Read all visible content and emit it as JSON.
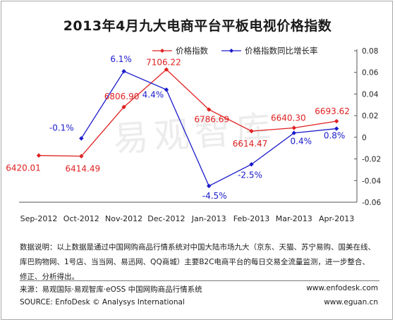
{
  "title": "2013年4月九大电商平台平板电视价格指数",
  "watermark": "易观智库",
  "chart_data": {
    "type": "line",
    "categories": [
      "Sep-2012",
      "Oct-2012",
      "Nov-2012",
      "Dec-2012",
      "Jan-2013",
      "Feb-2013",
      "Mar-2013",
      "Apr-2013"
    ],
    "series": [
      {
        "name": "价格指数",
        "axis": "left",
        "color": "#e02020",
        "values": [
          6420.01,
          6414.49,
          6806.9,
          7106.22,
          6786.69,
          6614.47,
          6640.3,
          6693.62
        ],
        "labels": [
          "6420.01",
          "6414.49",
          "6806.90",
          "7106.22",
          "6786.69",
          "6614.47",
          "6640.30",
          "6693.62"
        ]
      },
      {
        "name": "价格指数同比增长率",
        "axis": "right",
        "color": "#1a1acc",
        "values": [
          null,
          -0.001,
          0.061,
          0.044,
          -0.045,
          -0.025,
          0.004,
          0.008
        ],
        "labels": [
          "",
          "-0.1%",
          "6.1%",
          "4.4%",
          "-4.5%",
          "-2.5%",
          "0.4%",
          "0.8%"
        ]
      }
    ],
    "y_right": {
      "ticks": [
        "0.08",
        "0.06",
        "0.04",
        "0.02",
        "0",
        "-0.02",
        "-0.04",
        "-0.06"
      ],
      "ylim": [
        -0.06,
        0.08
      ]
    },
    "y_left": {
      "ylim": [
        6300,
        7200
      ],
      "tick_labels_shown": false
    },
    "grid": false,
    "legend": "top"
  },
  "notes": {
    "description": "数据说明：以上数据是通过中国网购商品行情系统对中国大陆市场九大（京东、天猫、苏宁易购、国美在线、库巴购物网、1号店、当当网、易迅网、QQ商城）主要B2C电商平台的每日交易全流量监测，进一步整合、修正、分析得出。",
    "source_cn": "来源：易观国际·易观智库·eOSS 中国网购商品行情系统",
    "source_en": "SOURCE: EnfoDesk © Analysys International",
    "url1": "www.enfodesk.com",
    "url2": "www.eguan.cn"
  }
}
